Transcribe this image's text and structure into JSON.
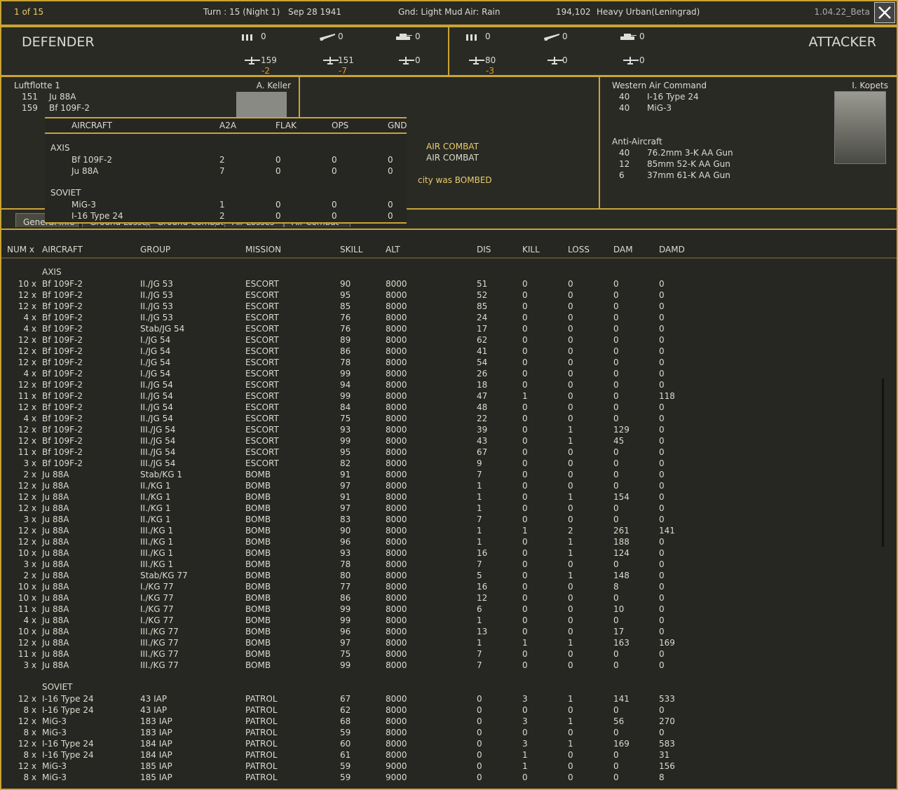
{
  "header": {
    "page": "1 of 15",
    "turn": "Turn : 15 (Night 1)",
    "date": "Sep 28 1941",
    "ground": "Gnd: Light Mud",
    "air": "Air: Rain",
    "hex": "194,102",
    "terrain": "Heavy Urban(Leningrad)",
    "version": "1.04.22_Beta"
  },
  "defender": {
    "label": "DEFENDER",
    "top": [
      0,
      0,
      0
    ],
    "bottom": [
      159,
      151,
      0
    ],
    "losses": [
      -2,
      -7
    ]
  },
  "attacker": {
    "label": "ATTACKER",
    "top": [
      0,
      0,
      0
    ],
    "bottom": [
      80,
      0,
      0
    ],
    "losses": [
      -3
    ]
  },
  "defender_panel": {
    "command": "Luftflotte 1",
    "leader": "A. Keller",
    "rows": [
      [
        151,
        "Ju 88A"
      ],
      [
        159,
        "Bf 109F-2"
      ]
    ]
  },
  "attacker_panel": {
    "command": "Western Air Command",
    "leader": "I. Kopets",
    "rows": [
      [
        40,
        "I-16 Type 24"
      ],
      [
        40,
        "MiG-3"
      ]
    ],
    "aa_title": "Anti-Aircraft",
    "aa_rows": [
      [
        40,
        "76.2mm 3-K AA Gun"
      ],
      [
        12,
        "85mm 52-K AA Gun"
      ],
      [
        6,
        "37mm 61-K AA Gun"
      ]
    ]
  },
  "messages": [
    "AIR COMBAT",
    "AIR COMBAT",
    "city was BOMBED"
  ],
  "tabs": [
    "General Info",
    "Ground Losses",
    "Ground Combat",
    "Air Losses",
    "Air Combat"
  ],
  "popup": {
    "headers": [
      "AIRCRAFT",
      "A2A",
      "FLAK",
      "OPS",
      "GND"
    ],
    "sections": [
      {
        "label": "AXIS",
        "rows": [
          [
            "Bf 109F-2",
            2,
            0,
            0,
            0
          ],
          [
            "Ju 88A",
            7,
            0,
            0,
            0
          ]
        ]
      },
      {
        "label": "SOVIET",
        "rows": [
          [
            "MiG-3",
            1,
            0,
            0,
            0
          ],
          [
            "I-16 Type 24",
            2,
            0,
            0,
            0
          ]
        ]
      }
    ]
  },
  "table": {
    "headers": [
      "NUM x",
      "AIRCRAFT",
      "GROUP",
      "MISSION",
      "SKILL",
      "ALT",
      "DIS",
      "KILL",
      "LOSS",
      "DAM",
      "DAMD"
    ],
    "sections": [
      {
        "label": "AXIS",
        "rows": [
          [
            "10 x",
            "Bf 109F-2",
            "II./JG 53",
            "ESCORT",
            90,
            8000,
            51,
            0,
            0,
            0,
            0
          ],
          [
            "12 x",
            "Bf 109F-2",
            "II./JG 53",
            "ESCORT",
            95,
            8000,
            52,
            0,
            0,
            0,
            0
          ],
          [
            "12 x",
            "Bf 109F-2",
            "II./JG 53",
            "ESCORT",
            85,
            8000,
            85,
            0,
            0,
            0,
            0
          ],
          [
            "4 x",
            "Bf 109F-2",
            "II./JG 53",
            "ESCORT",
            76,
            8000,
            24,
            0,
            0,
            0,
            0
          ],
          [
            "4 x",
            "Bf 109F-2",
            "Stab/JG 54",
            "ESCORT",
            76,
            8000,
            17,
            0,
            0,
            0,
            0
          ],
          [
            "12 x",
            "Bf 109F-2",
            "I./JG 54",
            "ESCORT",
            89,
            8000,
            62,
            0,
            0,
            0,
            0
          ],
          [
            "12 x",
            "Bf 109F-2",
            "I./JG 54",
            "ESCORT",
            86,
            8000,
            41,
            0,
            0,
            0,
            0
          ],
          [
            "12 x",
            "Bf 109F-2",
            "I./JG 54",
            "ESCORT",
            78,
            8000,
            54,
            0,
            0,
            0,
            0
          ],
          [
            "4 x",
            "Bf 109F-2",
            "I./JG 54",
            "ESCORT",
            99,
            8000,
            26,
            0,
            0,
            0,
            0
          ],
          [
            "12 x",
            "Bf 109F-2",
            "II./JG 54",
            "ESCORT",
            94,
            8000,
            18,
            0,
            0,
            0,
            0
          ],
          [
            "11 x",
            "Bf 109F-2",
            "II./JG 54",
            "ESCORT",
            99,
            8000,
            47,
            1,
            0,
            0,
            118
          ],
          [
            "12 x",
            "Bf 109F-2",
            "II./JG 54",
            "ESCORT",
            84,
            8000,
            48,
            0,
            0,
            0,
            0
          ],
          [
            "4 x",
            "Bf 109F-2",
            "II./JG 54",
            "ESCORT",
            75,
            8000,
            22,
            0,
            0,
            0,
            0
          ],
          [
            "12 x",
            "Bf 109F-2",
            "III./JG 54",
            "ESCORT",
            93,
            8000,
            39,
            0,
            1,
            129,
            0
          ],
          [
            "12 x",
            "Bf 109F-2",
            "III./JG 54",
            "ESCORT",
            99,
            8000,
            43,
            0,
            1,
            45,
            0
          ],
          [
            "11 x",
            "Bf 109F-2",
            "III./JG 54",
            "ESCORT",
            95,
            8000,
            67,
            0,
            0,
            0,
            0
          ],
          [
            "3 x",
            "Bf 109F-2",
            "III./JG 54",
            "ESCORT",
            82,
            8000,
            9,
            0,
            0,
            0,
            0
          ],
          [
            "2 x",
            "Ju 88A",
            "Stab/KG 1",
            "BOMB",
            91,
            8000,
            7,
            0,
            0,
            0,
            0
          ],
          [
            "12 x",
            "Ju 88A",
            "II./KG 1",
            "BOMB",
            97,
            8000,
            1,
            0,
            0,
            0,
            0
          ],
          [
            "12 x",
            "Ju 88A",
            "II./KG 1",
            "BOMB",
            91,
            8000,
            1,
            0,
            1,
            154,
            0
          ],
          [
            "12 x",
            "Ju 88A",
            "II./KG 1",
            "BOMB",
            97,
            8000,
            1,
            0,
            0,
            0,
            0
          ],
          [
            "3 x",
            "Ju 88A",
            "II./KG 1",
            "BOMB",
            83,
            8000,
            7,
            0,
            0,
            0,
            0
          ],
          [
            "12 x",
            "Ju 88A",
            "III./KG 1",
            "BOMB",
            90,
            8000,
            1,
            1,
            2,
            261,
            141
          ],
          [
            "12 x",
            "Ju 88A",
            "III./KG 1",
            "BOMB",
            96,
            8000,
            1,
            0,
            1,
            188,
            0
          ],
          [
            "10 x",
            "Ju 88A",
            "III./KG 1",
            "BOMB",
            93,
            8000,
            16,
            0,
            1,
            124,
            0
          ],
          [
            "3 x",
            "Ju 88A",
            "III./KG 1",
            "BOMB",
            78,
            8000,
            7,
            0,
            0,
            0,
            0
          ],
          [
            "2 x",
            "Ju 88A",
            "Stab/KG 77",
            "BOMB",
            80,
            8000,
            5,
            0,
            1,
            148,
            0
          ],
          [
            "10 x",
            "Ju 88A",
            "I./KG 77",
            "BOMB",
            77,
            8000,
            16,
            0,
            0,
            8,
            0
          ],
          [
            "10 x",
            "Ju 88A",
            "I./KG 77",
            "BOMB",
            86,
            8000,
            12,
            0,
            0,
            0,
            0
          ],
          [
            "11 x",
            "Ju 88A",
            "I./KG 77",
            "BOMB",
            99,
            8000,
            6,
            0,
            0,
            10,
            0
          ],
          [
            "4 x",
            "Ju 88A",
            "I./KG 77",
            "BOMB",
            99,
            8000,
            1,
            0,
            0,
            0,
            0
          ],
          [
            "10 x",
            "Ju 88A",
            "III./KG 77",
            "BOMB",
            96,
            8000,
            13,
            0,
            0,
            17,
            0
          ],
          [
            "12 x",
            "Ju 88A",
            "III./KG 77",
            "BOMB",
            97,
            8000,
            1,
            1,
            1,
            163,
            169
          ],
          [
            "11 x",
            "Ju 88A",
            "III./KG 77",
            "BOMB",
            75,
            8000,
            7,
            0,
            0,
            0,
            0
          ],
          [
            "3 x",
            "Ju 88A",
            "III./KG 77",
            "BOMB",
            99,
            8000,
            7,
            0,
            0,
            0,
            0
          ]
        ]
      },
      {
        "label": "SOVIET",
        "rows": [
          [
            "12 x",
            "I-16 Type 24",
            "43 IAP",
            "PATROL",
            67,
            8000,
            0,
            3,
            1,
            141,
            533
          ],
          [
            "8 x",
            "I-16 Type 24",
            "43 IAP",
            "PATROL",
            62,
            8000,
            0,
            0,
            0,
            0,
            0
          ],
          [
            "12 x",
            "MiG-3",
            "183 IAP",
            "PATROL",
            68,
            8000,
            0,
            3,
            1,
            56,
            270
          ],
          [
            "8 x",
            "MiG-3",
            "183 IAP",
            "PATROL",
            59,
            8000,
            0,
            0,
            0,
            0,
            0
          ],
          [
            "12 x",
            "I-16 Type 24",
            "184 IAP",
            "PATROL",
            60,
            8000,
            0,
            3,
            1,
            169,
            583
          ],
          [
            "8 x",
            "I-16 Type 24",
            "184 IAP",
            "PATROL",
            61,
            8000,
            0,
            1,
            0,
            0,
            31
          ],
          [
            "12 x",
            "MiG-3",
            "185 IAP",
            "PATROL",
            59,
            9000,
            0,
            1,
            0,
            0,
            156
          ],
          [
            "8 x",
            "MiG-3",
            "185 IAP",
            "PATROL",
            59,
            9000,
            0,
            0,
            0,
            0,
            8
          ]
        ]
      }
    ]
  }
}
